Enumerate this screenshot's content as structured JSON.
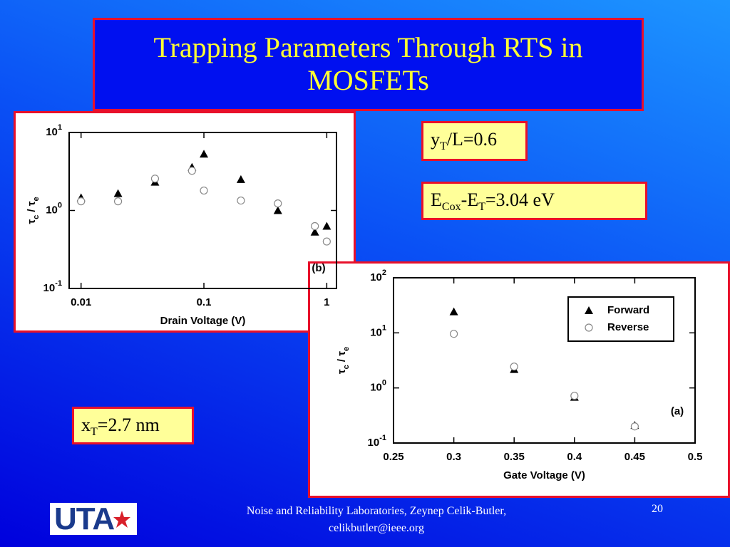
{
  "slide": {
    "title": "Trapping Parameters Through RTS in MOSFETs",
    "notes": [
      [
        "y",
        "T",
        "/L=0.6"
      ],
      [
        "E",
        "Cox",
        "-E",
        "T",
        "=3.04 eV"
      ],
      [
        "x",
        "T",
        "=2.7 nm"
      ]
    ],
    "footer": [
      "Noise and Reliability Laboratories, Zeynep Celik-Butler,",
      "celikbutler@ieee.org"
    ],
    "page_number": "20",
    "logo": "UTA"
  },
  "chart_data": [
    {
      "type": "scatter",
      "xlabel": "Drain Voltage (V)",
      "ylabel": [
        "τ",
        "c",
        " / ",
        "τ",
        "e"
      ],
      "annotation": "(b)",
      "xscale": "log",
      "yscale": "log",
      "xlim": [
        0.008,
        1.2
      ],
      "ylim": [
        0.1,
        10
      ],
      "xticks": [
        0.01,
        0.1,
        1
      ],
      "yticks": [
        {
          "value": 0.1,
          "label": "10",
          "exponent": "-1"
        },
        {
          "value": 1,
          "label": "10",
          "exponent": "0"
        },
        {
          "value": 10,
          "label": "10",
          "exponent": "1"
        }
      ],
      "x": [
        0.01,
        0.02,
        0.04,
        0.08,
        0.1,
        0.2,
        0.4,
        0.8,
        1.0
      ],
      "series": [
        {
          "marker": "triangle",
          "color": "#000000",
          "values": [
            1.46,
            1.65,
            2.31,
            3.59,
            5.3,
            2.5,
            1.0,
            0.53,
            0.63
          ]
        },
        {
          "marker": "circle",
          "color": "#888888",
          "values": [
            1.31,
            1.31,
            2.56,
            3.23,
            1.8,
            1.34,
            1.23,
            0.63,
            0.4
          ]
        }
      ]
    },
    {
      "type": "scatter",
      "xlabel": "Gate Voltage (V)",
      "ylabel": [
        "τ",
        "c",
        " / ",
        "τ",
        "e"
      ],
      "annotation": "(a)",
      "xscale": "linear",
      "yscale": "log",
      "xlim": [
        0.25,
        0.5
      ],
      "ylim": [
        0.1,
        100
      ],
      "xticks": [
        0.25,
        0.3,
        0.35,
        0.4,
        0.45,
        0.5
      ],
      "yticks": [
        {
          "value": 0.1,
          "label": "10",
          "exponent": "-1"
        },
        {
          "value": 1,
          "label": "10",
          "exponent": "0"
        },
        {
          "value": 10,
          "label": "10",
          "exponent": "1"
        },
        {
          "value": 100,
          "label": "10",
          "exponent": "2"
        }
      ],
      "x": [
        0.3,
        0.35,
        0.4,
        0.45
      ],
      "legend": "upper right",
      "series": [
        {
          "name": "Forward",
          "marker": "triangle",
          "color": "#000000",
          "values": [
            24.2,
            2.17,
            0.68,
            0.21
          ]
        },
        {
          "name": "Reverse",
          "marker": "circle",
          "color": "#888888",
          "values": [
            9.6,
            2.44,
            0.72,
            0.2
          ]
        }
      ]
    }
  ]
}
